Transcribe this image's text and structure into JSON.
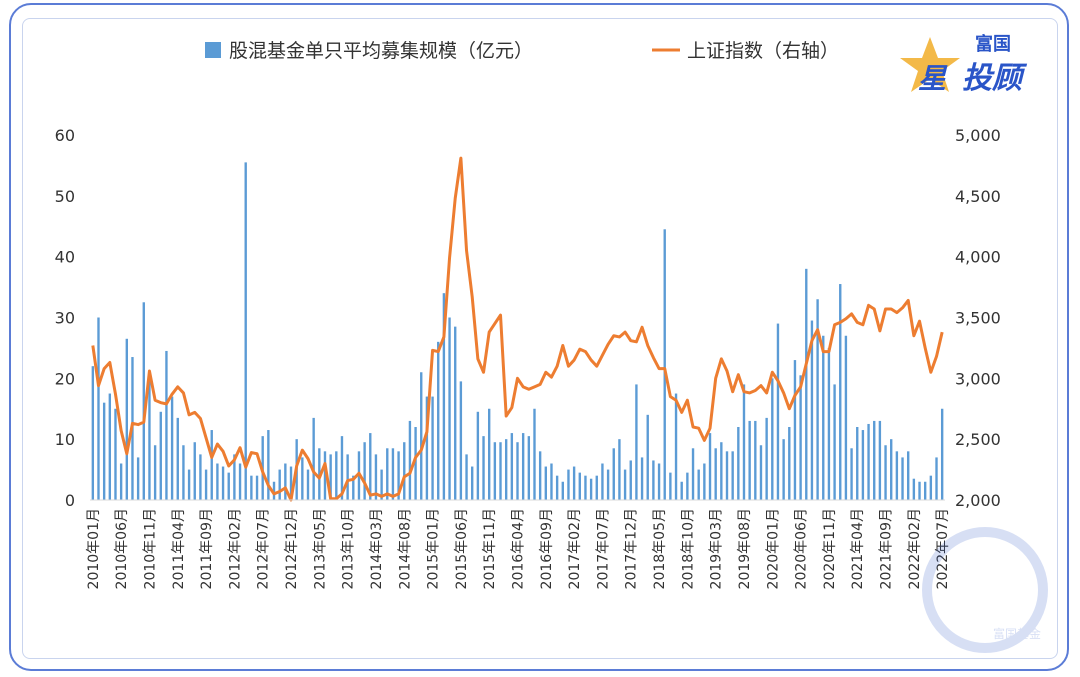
{
  "chart_data": {
    "type": "bar+line",
    "title": "",
    "legend_position": "top-center",
    "x_tick_labels": [
      "2010年01月",
      "2010年06月",
      "2010年11月",
      "2011年04月",
      "2011年09月",
      "2012年02月",
      "2012年07月",
      "2012年12月",
      "2013年05月",
      "2013年10月",
      "2014年03月",
      "2014年08月",
      "2015年01月",
      "2015年06月",
      "2015年11月",
      "2016年04月",
      "2016年09月",
      "2017年02月",
      "2017年07月",
      "2017年12月",
      "2018年05月",
      "2018年10月",
      "2019年03月",
      "2019年08月",
      "2020年01月",
      "2020年06月",
      "2020年11月",
      "2021年04月",
      "2021年09月",
      "2022年02月",
      "2022年07月"
    ],
    "start_month": "2010-01",
    "left_axis": {
      "ylim": [
        0,
        60
      ],
      "ticks": [
        "0",
        "10",
        "20",
        "30",
        "40",
        "50",
        "60"
      ]
    },
    "right_axis": {
      "ylim": [
        2000,
        5000
      ],
      "ticks": [
        "2,000",
        "2,500",
        "3,000",
        "3,500",
        "4,000",
        "4,500",
        "5,000"
      ]
    },
    "series": [
      {
        "name": "股混基金单只平均募集规模（亿元）",
        "type": "bar",
        "axis": "left",
        "color": "#5b9bd5",
        "values": [
          22,
          30,
          16,
          17.5,
          15,
          6,
          26.5,
          23.5,
          7,
          32.5,
          20,
          9,
          14.5,
          24.5,
          17,
          13.5,
          9,
          5,
          9.5,
          7.5,
          5,
          11.5,
          6,
          5.5,
          4.5,
          7.5,
          6,
          55.5,
          4,
          4,
          10.5,
          11.5,
          3,
          5,
          6,
          5.5,
          10,
          7,
          5,
          13.5,
          8.5,
          8,
          7.5,
          8,
          10.5,
          7.5,
          4,
          8,
          9.5,
          11,
          7.5,
          5,
          8.5,
          8.5,
          8,
          9.5,
          13,
          12,
          21,
          17,
          17,
          26,
          34,
          30,
          28.5,
          19.5,
          7.5,
          5.5,
          14.5,
          10.5,
          15,
          9.5,
          9.5,
          10,
          11,
          9.5,
          11,
          10.5,
          15,
          8,
          5.5,
          6,
          4,
          3,
          5,
          5.5,
          4.5,
          4,
          3.5,
          4,
          6,
          5,
          8.5,
          10,
          5,
          6.5,
          19,
          7,
          14,
          6.5,
          6,
          44.5,
          4.5,
          17.5,
          3,
          4.5,
          8.5,
          5,
          6,
          11,
          8.5,
          9.5,
          8,
          8,
          12,
          19,
          13,
          13,
          9,
          13.5,
          20,
          29,
          10,
          12,
          23,
          20.5,
          38,
          29.5,
          33,
          27,
          25,
          19,
          35.5,
          27,
          8.5,
          12,
          11.5,
          12.5,
          13,
          13,
          9,
          10,
          8,
          7,
          8,
          3.5,
          3,
          3,
          4,
          7,
          15
        ]
      },
      {
        "name": "上证指数（右轴）",
        "type": "line",
        "axis": "right",
        "color": "#ed7d31",
        "values": [
          3270,
          2940,
          3080,
          3130,
          2870,
          2570,
          2380,
          2630,
          2620,
          2640,
          3060,
          2820,
          2800,
          2790,
          2870,
          2930,
          2880,
          2700,
          2720,
          2670,
          2510,
          2350,
          2460,
          2400,
          2280,
          2330,
          2430,
          2270,
          2390,
          2380,
          2230,
          2120,
          2050,
          2070,
          2100,
          2000,
          2280,
          2410,
          2340,
          2230,
          2180,
          2300,
          2010,
          2010,
          2050,
          2160,
          2170,
          2220,
          2140,
          2040,
          2050,
          2030,
          2050,
          2030,
          2050,
          2190,
          2220,
          2350,
          2410,
          2560,
          3230,
          3220,
          3340,
          3990,
          4480,
          4810,
          4050,
          3670,
          3160,
          3050,
          3380,
          3450,
          3520,
          2690,
          2760,
          3000,
          2930,
          2910,
          2930,
          2950,
          3050,
          3010,
          3100,
          3270,
          3100,
          3150,
          3240,
          3220,
          3150,
          3100,
          3190,
          3280,
          3350,
          3340,
          3380,
          3310,
          3300,
          3420,
          3270,
          3170,
          3080,
          3080,
          2850,
          2820,
          2720,
          2820,
          2600,
          2590,
          2490,
          2590,
          3000,
          3160,
          3060,
          2890,
          3030,
          2890,
          2880,
          2900,
          2940,
          2880,
          3050,
          2980,
          2880,
          2750,
          2860,
          2930,
          3120,
          3310,
          3400,
          3220,
          3220,
          3440,
          3460,
          3490,
          3530,
          3460,
          3440,
          3600,
          3570,
          3390,
          3570,
          3570,
          3540,
          3580,
          3640,
          3350,
          3470,
          3250,
          3050,
          3180,
          3380
        ]
      }
    ]
  },
  "brand": {
    "line1": "富国",
    "line2_prefix": "星",
    "line2": "投顾",
    "watermark": "富国基金",
    "color": "#2a55c8",
    "accent": "#f2b134"
  }
}
